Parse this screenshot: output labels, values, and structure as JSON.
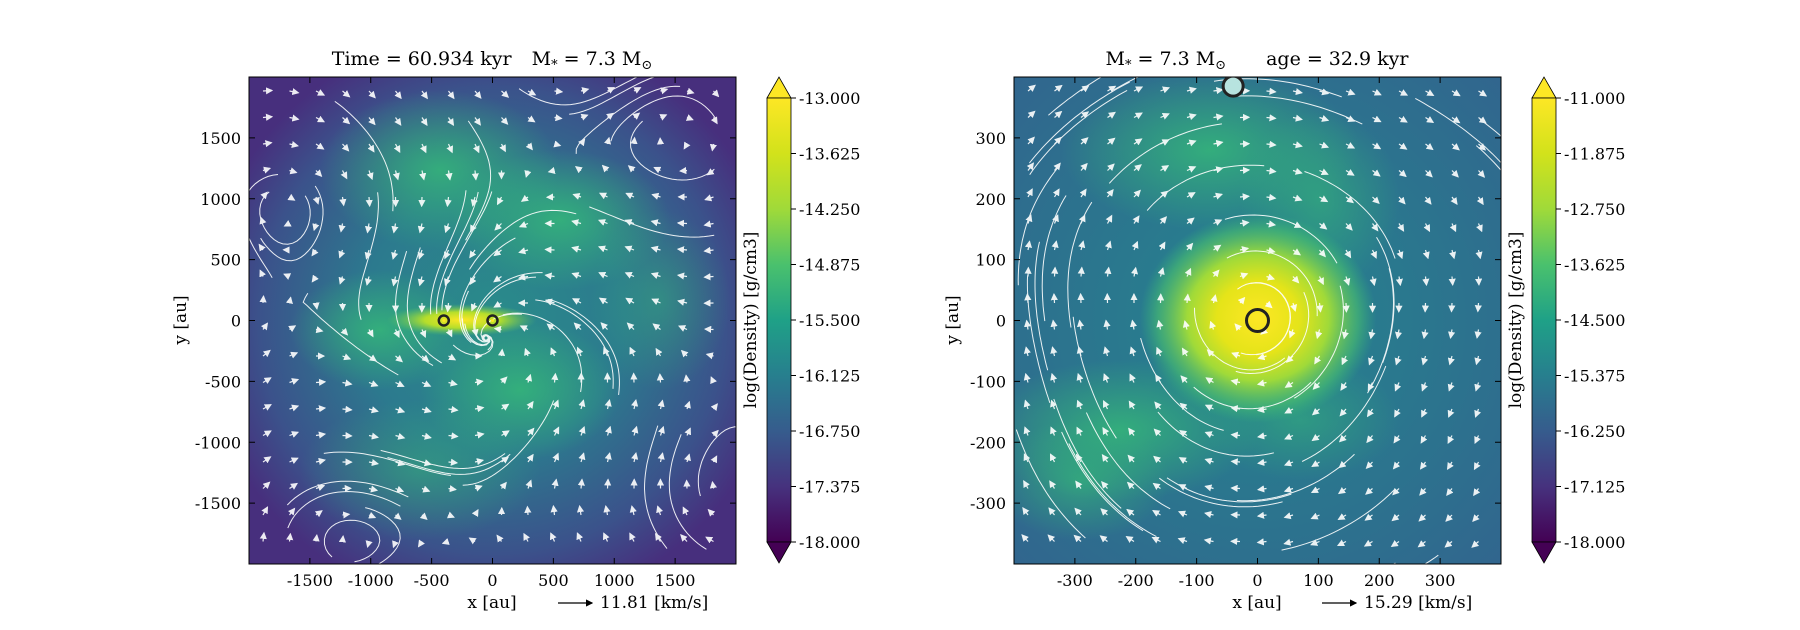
{
  "chart_data": [
    {
      "type": "heatmap",
      "title": "Time = 60.934 kyr    M$_*$ = 7.3 M$_\\odot$",
      "title_parts": {
        "time": "Time = 60.934 kyr",
        "mass_lhs": "M",
        "mass_sub": "*",
        "mass_rhs": " = 7.3 M",
        "mass_unit_sub": "⊙"
      },
      "xlabel": "x [au]",
      "ylabel": "y [au]",
      "xlim": [
        -2000,
        2000
      ],
      "ylim": [
        -2000,
        2000
      ],
      "xticks": [
        -1500,
        -1000,
        -500,
        0,
        500,
        1000,
        1500
      ],
      "xtick_labels": [
        "-1500",
        "-1000",
        "-500",
        "0",
        "500",
        "1000",
        "1500"
      ],
      "yticks": [
        1500,
        1000,
        500,
        0,
        -500,
        -1000,
        -1500
      ],
      "ytick_labels": [
        "1500",
        "1000",
        "500",
        "0",
        "-500",
        "-1000",
        "-1500"
      ],
      "colorbar": {
        "label": "log(Density) [g/cm3]",
        "range": [
          -18.0,
          -13.0
        ],
        "ticks": [
          -13.0,
          -13.625,
          -14.25,
          -14.875,
          -15.5,
          -16.125,
          -16.75,
          -17.375,
          -18.0
        ],
        "tick_labels": [
          "-13.000",
          "-13.625",
          "-14.250",
          "-14.875",
          "-15.500",
          "-16.125",
          "-16.750",
          "-17.375",
          "-18.000"
        ],
        "colormap": "viridis",
        "extend": "both"
      },
      "velocity_key": {
        "value": 11.81,
        "label": "11.81 [km/s]"
      },
      "sinks": [
        {
          "x": -400,
          "y": 0
        },
        {
          "x": 0,
          "y": 0
        }
      ],
      "grid": false
    },
    {
      "type": "heatmap",
      "title_parts": {
        "mass_lhs": "M",
        "mass_sub": "*",
        "mass_rhs": " = 7.3 M",
        "mass_unit_sub": "⊙",
        "age": "age = 32.9 kyr"
      },
      "xlabel": "x [au]",
      "ylabel": "y [au]",
      "xlim": [
        -400,
        400
      ],
      "ylim": [
        -400,
        400
      ],
      "xticks": [
        -300,
        -200,
        -100,
        0,
        100,
        200,
        300
      ],
      "xtick_labels": [
        "-300",
        "-200",
        "-100",
        "0",
        "100",
        "200",
        "300"
      ],
      "yticks": [
        300,
        200,
        100,
        0,
        -100,
        -200,
        -300
      ],
      "ytick_labels": [
        "300",
        "200",
        "100",
        "0",
        "-100",
        "-200",
        "-300"
      ],
      "colorbar": {
        "label": "log(Density) [g/cm3]",
        "range": [
          -18.0,
          -11.0
        ],
        "ticks": [
          -11.0,
          -11.875,
          -12.75,
          -13.625,
          -14.5,
          -15.375,
          -16.25,
          -17.125,
          -18.0
        ],
        "tick_labels": [
          "-11.000",
          "-11.875",
          "-12.750",
          "-13.625",
          "-14.500",
          "-15.375",
          "-16.250",
          "-17.125",
          "-18.000"
        ],
        "colormap": "viridis",
        "extend": "both"
      },
      "velocity_key": {
        "value": 15.29,
        "label": "15.29 [km/s]"
      },
      "sinks": [
        {
          "x": 0,
          "y": 0
        },
        {
          "x": -40,
          "y": 385
        }
      ],
      "grid": false
    }
  ],
  "colors": {
    "viridis_low": "#440154",
    "viridis_mid": "#21918c",
    "viridis_high": "#fde725",
    "streamline": "#ffffff"
  }
}
